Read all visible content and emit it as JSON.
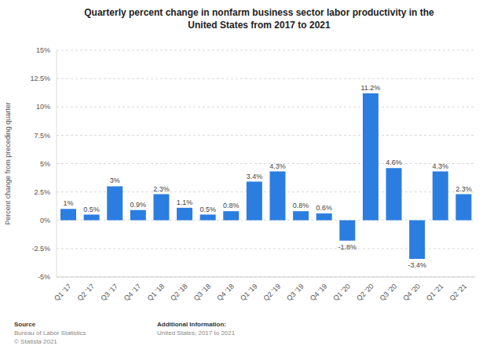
{
  "chart_data": {
    "type": "bar",
    "title": "Quarterly percent change in nonfarm business sector labor productivity in the United States from 2017 to 2021",
    "y_label": "Percent change from preceding quarter",
    "categories": [
      "Q1 '17",
      "Q2 '17",
      "Q3 '17",
      "Q4 '17",
      "Q1 '18",
      "Q2 '18",
      "Q3 '18",
      "Q4 '18",
      "Q1 '19",
      "Q2 '19",
      "Q3 '19",
      "Q4 '19",
      "Q1 '20",
      "Q2 '20",
      "Q3 '20",
      "Q4 '20",
      "Q1 '21",
      "Q2 '21"
    ],
    "values": [
      1,
      0.5,
      3,
      0.9,
      2.3,
      1.1,
      0.5,
      0.8,
      3.4,
      4.3,
      0.8,
      0.6,
      -1.8,
      11.2,
      4.6,
      -3.4,
      4.3,
      2.3
    ],
    "value_labels": [
      "1%",
      "0.5%",
      "3%",
      "0.9%",
      "2.3%",
      "1.1%",
      "0.5%",
      "0.8%",
      "3.4%",
      "4.3%",
      "0.8%",
      "0.6%",
      "-1.8%",
      "11.2%",
      "4.6%",
      "-3.4%",
      "4.3%",
      "2.3%"
    ],
    "color": "#2c7de0",
    "ylim": [
      -5,
      15
    ],
    "yticks": [
      {
        "value": -5,
        "label": "-5%"
      },
      {
        "value": -2.5,
        "label": "-2.5%"
      },
      {
        "value": 0,
        "label": "0%"
      },
      {
        "value": 2.5,
        "label": "2.5%"
      },
      {
        "value": 5,
        "label": "5%"
      },
      {
        "value": 7.5,
        "label": "7.5%"
      },
      {
        "value": 10,
        "label": "10%"
      },
      {
        "value": 12.5,
        "label": "12.5%"
      },
      {
        "value": 15,
        "label": "15%"
      }
    ],
    "grid": true,
    "data_labels": true,
    "annotations": [
      "Source",
      "Bureau of Labor Statistics",
      "© Statista 2021",
      "Additional Information:",
      "United States; 2017 to 2021"
    ]
  }
}
